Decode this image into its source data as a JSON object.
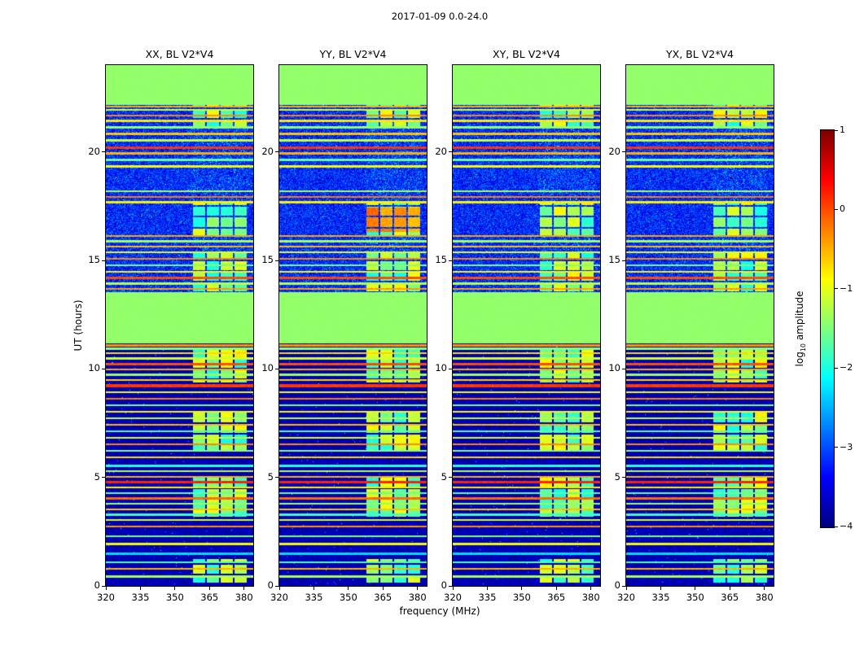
{
  "chart_data": {
    "type": "heatmap",
    "title": "2017-01-09 0.0-24.0",
    "panels": [
      {
        "label": "XX, BL V2*V4"
      },
      {
        "label": "YY, BL V2*V4"
      },
      {
        "label": "XY, BL V2*V4"
      },
      {
        "label": "YX, BL V2*V4"
      }
    ],
    "xlabel": "frequency (MHz)",
    "ylabel": "UT (hours)",
    "x_ticks": [
      320,
      335,
      350,
      365,
      380
    ],
    "y_ticks": [
      0,
      5,
      10,
      15,
      20
    ],
    "x_range": [
      320,
      384
    ],
    "y_range": [
      0,
      24
    ],
    "colorbar": {
      "label": "log10 amplitude",
      "label_pre": "log",
      "label_sub": "10",
      "label_post": " amplitude",
      "ticks": [
        1,
        0,
        -1,
        -2,
        -3,
        -4
      ],
      "range": [
        -4,
        1
      ],
      "colormap": "jet"
    },
    "features": {
      "flagged_blocks_ut": [
        [
          11.2,
          13.55
        ],
        [
          22.2,
          24.01
        ]
      ],
      "flagged_value": -1.4,
      "background": {
        "low_ut_value": -3.75,
        "mid_ut_value": -3.2,
        "low_noise": 0.7,
        "mid_noise": 1.1
      },
      "rfi_band_mhz": [
        357,
        381.5
      ],
      "rfi_patches_ut": [
        [
          0.15,
          1.25
        ],
        [
          3.2,
          5.0
        ],
        [
          6.2,
          8.1
        ],
        [
          9.4,
          10.9
        ],
        [
          13.6,
          15.45
        ],
        [
          16.1,
          17.7
        ],
        [
          21.2,
          22.2
        ]
      ],
      "yy_hot_patch": {
        "panel": 1,
        "ut": [
          16.35,
          17.45
        ],
        "value": -0.35
      },
      "stripes": [
        [
          0.45,
          -1.3
        ],
        [
          0.8,
          -0.5
        ],
        [
          1.1,
          -1.7
        ],
        [
          1.5,
          -2.3
        ],
        [
          1.95,
          -0.9
        ],
        [
          2.3,
          -1.5
        ],
        [
          2.75,
          -0.35
        ],
        [
          3.05,
          -1.1
        ],
        [
          3.3,
          -1.8
        ],
        [
          3.55,
          -0.6
        ],
        [
          3.8,
          -1.35
        ],
        [
          4.05,
          -0.15
        ],
        [
          4.3,
          -1.6
        ],
        [
          4.55,
          -0.8
        ],
        [
          4.8,
          0.2,
          0.13
        ],
        [
          5.05,
          -0.5
        ],
        [
          5.3,
          -1.25
        ],
        [
          5.55,
          -1.9
        ],
        [
          5.95,
          -0.7
        ],
        [
          6.25,
          -1.45
        ],
        [
          6.55,
          -0.3
        ],
        [
          6.85,
          -1.05
        ],
        [
          7.15,
          -1.7
        ],
        [
          7.45,
          -0.55
        ],
        [
          7.75,
          -1.2
        ],
        [
          8.05,
          -0.85
        ],
        [
          8.35,
          -1.5
        ],
        [
          8.65,
          -0.25
        ],
        [
          8.95,
          -0.95
        ],
        [
          9.25,
          0.1,
          0.13
        ],
        [
          9.5,
          -0.65
        ],
        [
          9.75,
          -1.35
        ],
        [
          10.0,
          -0.45
        ],
        [
          10.25,
          0.0,
          0.12
        ],
        [
          10.5,
          -1.1
        ],
        [
          10.75,
          -0.7
        ],
        [
          10.95,
          -1.4
        ],
        [
          11.1,
          -0.35
        ],
        [
          13.7,
          -0.4
        ],
        [
          13.95,
          -1.2
        ],
        [
          14.2,
          0.0,
          0.12
        ],
        [
          14.5,
          -0.85
        ],
        [
          14.8,
          -1.5
        ],
        [
          15.1,
          -0.3
        ],
        [
          15.4,
          -1.0
        ],
        [
          15.65,
          -0.55
        ],
        [
          15.9,
          -1.3
        ],
        [
          16.15,
          -0.45
        ],
        [
          17.7,
          -0.8
        ],
        [
          17.95,
          -0.25
        ],
        [
          18.2,
          -1.3
        ],
        [
          19.35,
          -0.9
        ],
        [
          19.65,
          -1.6
        ],
        [
          19.95,
          -0.5
        ],
        [
          20.2,
          0.1,
          0.12
        ],
        [
          20.55,
          -1.15
        ],
        [
          20.85,
          -0.6
        ],
        [
          21.15,
          -1.4
        ],
        [
          21.45,
          -0.75
        ],
        [
          21.7,
          -0.3
        ],
        [
          21.95,
          -1.05
        ],
        [
          22.1,
          -0.5
        ]
      ]
    }
  }
}
